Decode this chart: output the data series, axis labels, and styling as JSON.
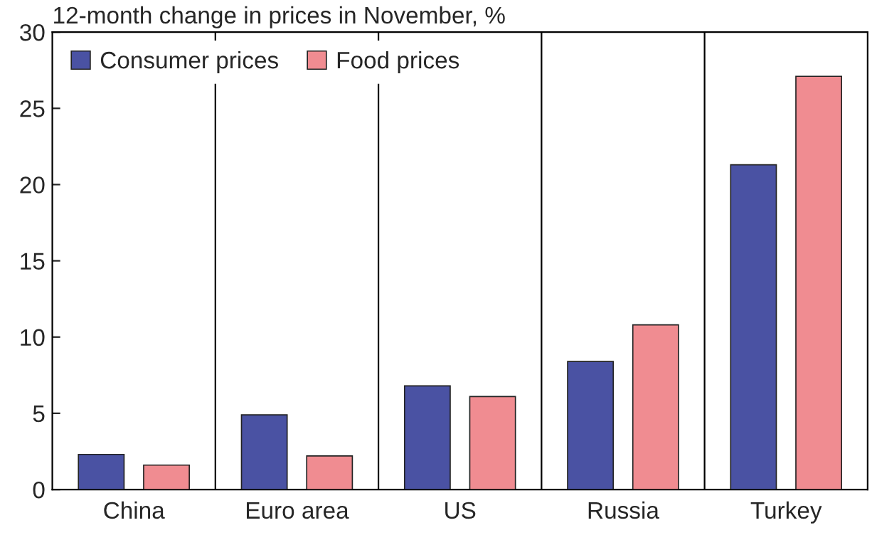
{
  "chart_data": {
    "type": "bar",
    "title": "12-month change in prices in November, %",
    "categories": [
      "China",
      "Euro area",
      "US",
      "Russia",
      "Turkey"
    ],
    "series": [
      {
        "name": "Consumer prices",
        "color": "#4a52a3",
        "values": [
          2.3,
          4.9,
          6.8,
          8.4,
          21.3
        ]
      },
      {
        "name": "Food prices",
        "color": "#f08c91",
        "values": [
          1.6,
          2.2,
          6.1,
          10.8,
          27.1
        ]
      }
    ],
    "ylim": [
      0,
      30
    ],
    "yticks": [
      0,
      5,
      10,
      15,
      20,
      25,
      30
    ],
    "grid": "x",
    "legend": "top left"
  }
}
